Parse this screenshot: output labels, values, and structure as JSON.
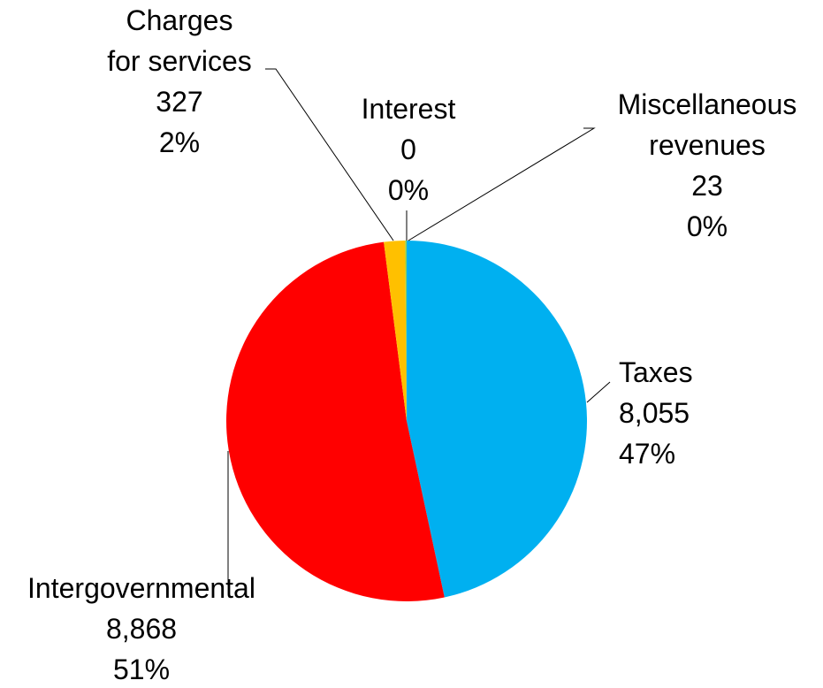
{
  "chart_data": {
    "type": "pie",
    "categories": [
      "Taxes",
      "Intergovernmental",
      "Charges\nfor services",
      "Interest",
      "Miscellaneous\nrevenues"
    ],
    "values": [
      8055,
      8868,
      327,
      0,
      23
    ],
    "value_labels": [
      "8,055",
      "8,868",
      "327",
      "0",
      "23"
    ],
    "percents": [
      47,
      51,
      2,
      0,
      0
    ],
    "percent_labels": [
      "47%",
      "51%",
      "2%",
      "0%",
      "0%"
    ],
    "colors": [
      "#00b0f0",
      "#ff0000",
      "#ffc000",
      "#7030a0",
      "#92d050"
    ]
  }
}
